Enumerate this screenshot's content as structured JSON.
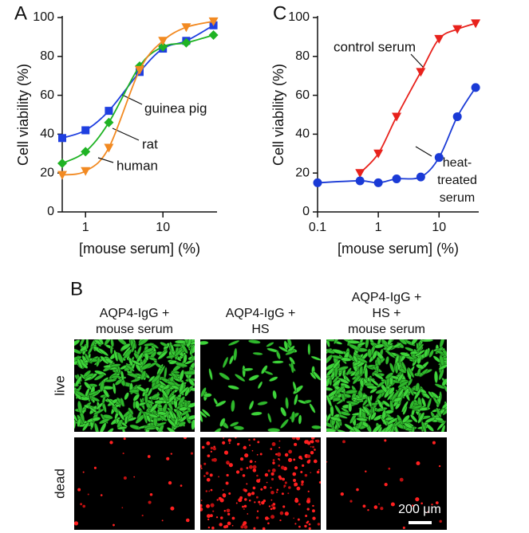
{
  "chart_data": [
    {
      "type": "scatter",
      "panel_label": "A",
      "xlabel": "[mouse serum] (%)",
      "ylabel": "Cell viability (%)",
      "xscale": "log",
      "xlim": [
        0.5,
        50
      ],
      "xticks": [
        1,
        10
      ],
      "ylim": [
        0,
        100
      ],
      "yticks": [
        0,
        20,
        40,
        60,
        80,
        100
      ],
      "x": [
        0.5,
        1,
        2,
        5,
        10,
        20,
        45
      ],
      "series": [
        {
          "name": "guinea pig",
          "color": "#1f3fe0",
          "marker": "square",
          "values": [
            38,
            42,
            52,
            72,
            84,
            88,
            96
          ]
        },
        {
          "name": "rat",
          "color": "#1fb324",
          "marker": "diamond",
          "values": [
            25,
            31,
            46,
            75,
            85,
            87,
            91
          ]
        },
        {
          "name": "human",
          "color": "#f28a22",
          "marker": "triangle-down",
          "values": [
            19,
            21,
            33,
            73,
            88,
            95,
            98
          ]
        }
      ]
    },
    {
      "type": "scatter",
      "panel_label": "C",
      "xlabel": "[mouse serum] (%)",
      "ylabel": "Cell viability (%)",
      "xscale": "log",
      "xlim": [
        0.1,
        45
      ],
      "xticks": [
        0.1,
        1,
        10
      ],
      "ylim": [
        0,
        100
      ],
      "yticks": [
        0,
        20,
        40,
        60,
        80,
        100
      ],
      "x": [
        0.1,
        0.5,
        1,
        2,
        5,
        10,
        20,
        40
      ],
      "series": [
        {
          "name": "control serum",
          "color": "#e8221c",
          "marker": "triangle-down",
          "values": [
            null,
            20,
            30,
            49,
            72,
            89,
            94,
            97
          ]
        },
        {
          "name": "heat-treated serum",
          "color": "#1a3ad6",
          "marker": "circle",
          "values": [
            15,
            16,
            15,
            17,
            18,
            28,
            49,
            64
          ]
        }
      ]
    }
  ],
  "micrographs": {
    "panel_label": "B",
    "columns": [
      [
        "AQP4-IgG +",
        "mouse serum"
      ],
      [
        "AQP4-IgG +",
        "HS"
      ],
      [
        "AQP4-IgG +",
        "HS +",
        "mouse serum"
      ]
    ],
    "rows": [
      "live",
      "dead"
    ],
    "scale_bar": "200 μm"
  }
}
